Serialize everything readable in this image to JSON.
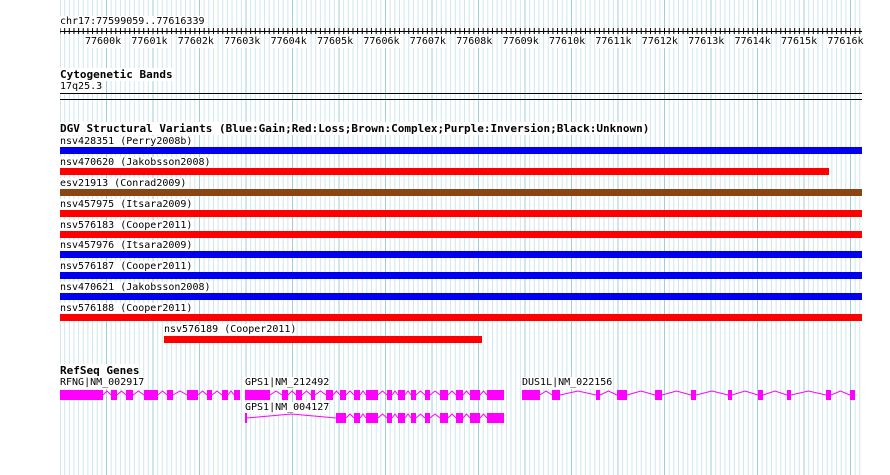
{
  "ruler": {
    "position": "chr17:77599059..77616339",
    "ticks": [
      "77600k",
      "77601k",
      "77602k",
      "77603k",
      "77604k",
      "77605k",
      "77606k",
      "77607k",
      "77608k",
      "77609k",
      "77610k",
      "77611k",
      "77612k",
      "77613k",
      "77614k",
      "77615k",
      "77616k"
    ]
  },
  "cytoband": {
    "title": "Cytogenetic Bands",
    "band": "17q25.3"
  },
  "dgv": {
    "title": "DGV Structural Variants (Blue:Gain;Red:Loss;Brown:Complex;Purple:Inversion;Black:Unknown)",
    "colors": {
      "gain": "#0000ee",
      "loss": "#ff0000",
      "complex": "#8b4513"
    },
    "variants": [
      {
        "label": "nsv428351 (Perry2008b)",
        "type": "gain"
      },
      {
        "label": "nsv470620 (Jakobsson2008)",
        "type": "loss"
      },
      {
        "label": "esv21913 (Conrad2009)",
        "type": "complex"
      },
      {
        "label": "nsv457975 (Itsara2009)",
        "type": "loss"
      },
      {
        "label": "nsv576183 (Cooper2011)",
        "type": "loss"
      },
      {
        "label": "nsv457976 (Itsara2009)",
        "type": "gain"
      },
      {
        "label": "nsv576187 (Cooper2011)",
        "type": "gain"
      },
      {
        "label": "nsv470621 (Jakobsson2008)",
        "type": "gain"
      },
      {
        "label": "nsv576188 (Cooper2011)",
        "type": "loss"
      },
      {
        "label": "nsv576189 (Cooper2011)",
        "type": "loss"
      }
    ]
  },
  "refseq": {
    "title": "RefSeq Genes",
    "color": "#ff00ff",
    "genes": [
      {
        "label": "RFNG|NM_002917"
      },
      {
        "label": "GPS1|NM_212492"
      },
      {
        "label": "DUS1L|NM_022156"
      },
      {
        "label": "GPS1|NM_004127"
      }
    ]
  }
}
